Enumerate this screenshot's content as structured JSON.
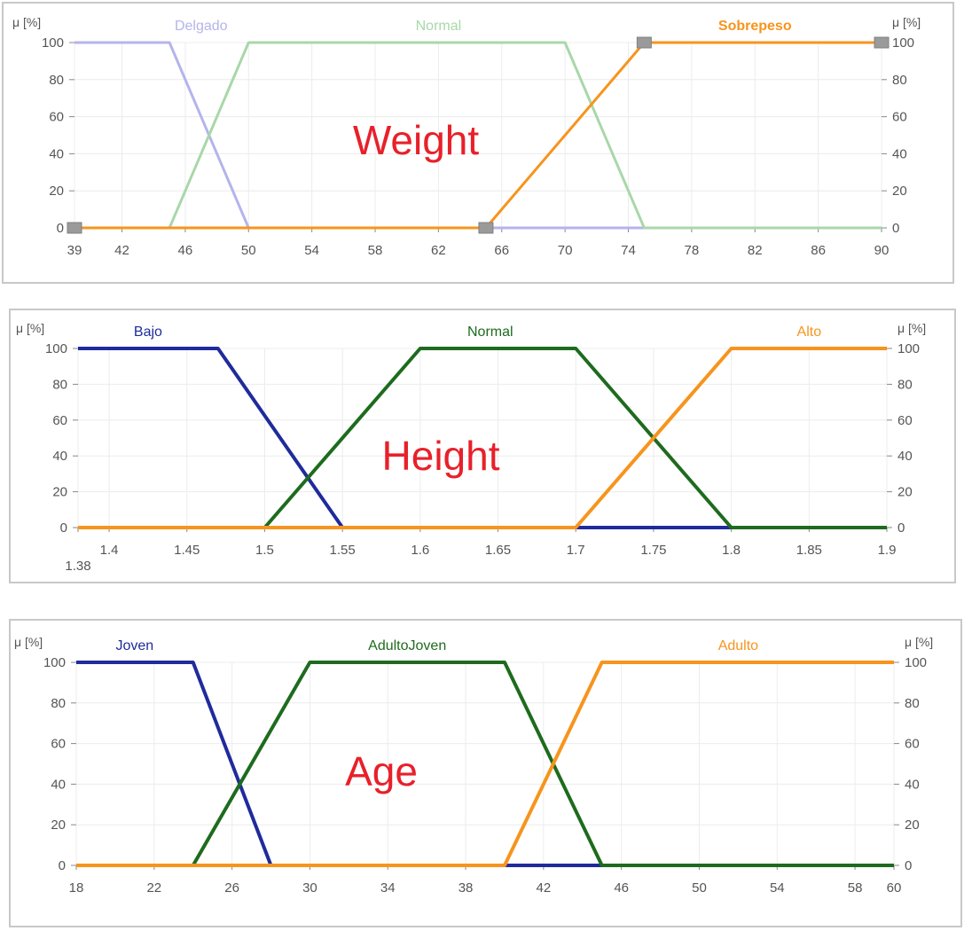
{
  "chart_data": [
    {
      "type": "line",
      "title": "Weight",
      "ylabel": "μ [%]",
      "xlim": [
        39,
        90
      ],
      "ylim": [
        0,
        100
      ],
      "x_ticks": [
        39,
        42,
        46,
        50,
        54,
        58,
        62,
        66,
        70,
        74,
        78,
        82,
        86,
        90
      ],
      "x_tick_labels": [
        "39",
        "42",
        "46",
        "50",
        "54",
        "58",
        "62",
        "66",
        "70",
        "74",
        "78",
        "82",
        "86",
        "90"
      ],
      "y_ticks": [
        0,
        20,
        40,
        60,
        80,
        100
      ],
      "y_tick_labels": [
        "0",
        "20",
        "40",
        "60",
        "80",
        "100"
      ],
      "grid": true,
      "series": [
        {
          "name": "Delgado",
          "color": "#b4b4ec",
          "label_x": 47,
          "bold": false,
          "points": [
            [
              39,
              100
            ],
            [
              45,
              100
            ],
            [
              50,
              0
            ],
            [
              90,
              0
            ]
          ]
        },
        {
          "name": "Normal",
          "color": "#a9d7a9",
          "label_x": 62,
          "bold": false,
          "points": [
            [
              39,
              0
            ],
            [
              45,
              0
            ],
            [
              50,
              100
            ],
            [
              70,
              100
            ],
            [
              75,
              0
            ],
            [
              90,
              0
            ]
          ]
        },
        {
          "name": "Sobrepeso",
          "color": "#f7941d",
          "label_x": 82,
          "bold": true,
          "points": [
            [
              39,
              0
            ],
            [
              65,
              0
            ],
            [
              75,
              100
            ],
            [
              90,
              100
            ]
          ]
        }
      ],
      "handles": [
        [
          39,
          0
        ],
        [
          65,
          0
        ],
        [
          75,
          100
        ],
        [
          90,
          100
        ]
      ]
    },
    {
      "type": "line",
      "title": "Height",
      "ylabel": "μ [%]",
      "xlim": [
        1.38,
        1.9
      ],
      "ylim": [
        0,
        100
      ],
      "x_ticks": [
        1.38,
        1.4,
        1.45,
        1.5,
        1.55,
        1.6,
        1.65,
        1.7,
        1.75,
        1.8,
        1.85,
        1.9
      ],
      "x_tick_labels": [
        "1.38",
        "1.4",
        "1.45",
        "1.5",
        "1.55",
        "1.6",
        "1.65",
        "1.7",
        "1.75",
        "1.8",
        "1.85",
        "1.9"
      ],
      "y_ticks": [
        0,
        20,
        40,
        60,
        80,
        100
      ],
      "y_tick_labels": [
        "0",
        "20",
        "40",
        "60",
        "80",
        "100"
      ],
      "grid": true,
      "series": [
        {
          "name": "Bajo",
          "color": "#1f2b9c",
          "label_x": 1.425,
          "bold": false,
          "points": [
            [
              1.38,
              100
            ],
            [
              1.47,
              100
            ],
            [
              1.55,
              0
            ],
            [
              1.8,
              0
            ]
          ]
        },
        {
          "name": "Normal",
          "color": "#1e6b1e",
          "label_x": 1.645,
          "bold": false,
          "points": [
            [
              1.5,
              0
            ],
            [
              1.6,
              100
            ],
            [
              1.7,
              100
            ],
            [
              1.8,
              0
            ],
            [
              1.9,
              0
            ]
          ]
        },
        {
          "name": "Alto",
          "color": "#f7941d",
          "label_x": 1.85,
          "bold": false,
          "points": [
            [
              1.38,
              0
            ],
            [
              1.7,
              0
            ],
            [
              1.8,
              100
            ],
            [
              1.9,
              100
            ]
          ]
        }
      ]
    },
    {
      "type": "line",
      "title": "Age",
      "ylabel": "μ [%]",
      "xlim": [
        18,
        60
      ],
      "ylim": [
        0,
        100
      ],
      "x_ticks": [
        18,
        22,
        26,
        30,
        34,
        38,
        42,
        46,
        50,
        54,
        58,
        60
      ],
      "x_tick_labels": [
        "18",
        "22",
        "26",
        "30",
        "34",
        "38",
        "42",
        "46",
        "50",
        "54",
        "58",
        "60"
      ],
      "y_ticks": [
        0,
        20,
        40,
        60,
        80,
        100
      ],
      "y_tick_labels": [
        "0",
        "20",
        "40",
        "60",
        "80",
        "100"
      ],
      "grid": true,
      "series": [
        {
          "name": "Joven",
          "color": "#1f2b9c",
          "label_x": 21,
          "bold": false,
          "points": [
            [
              18,
              100
            ],
            [
              24,
              100
            ],
            [
              28,
              0
            ],
            [
              45,
              0
            ]
          ]
        },
        {
          "name": "AdultoJoven",
          "color": "#1e6b1e",
          "label_x": 35,
          "bold": false,
          "points": [
            [
              24,
              0
            ],
            [
              30,
              100
            ],
            [
              40,
              100
            ],
            [
              45,
              0
            ],
            [
              60,
              0
            ]
          ]
        },
        {
          "name": "Adulto",
          "color": "#f7941d",
          "label_x": 52,
          "bold": false,
          "points": [
            [
              18,
              0
            ],
            [
              40,
              0
            ],
            [
              45,
              100
            ],
            [
              60,
              100
            ]
          ]
        }
      ]
    }
  ]
}
